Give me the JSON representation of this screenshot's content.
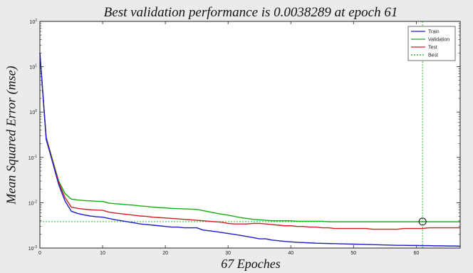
{
  "chart_data": {
    "type": "line",
    "title": "Best validation performance is 0.0038289 at epoch 61",
    "xlabel": "67 Epoches",
    "ylabel": "Mean Squared Error (mse)",
    "yscale": "log",
    "xlim": [
      0,
      67
    ],
    "ylim": [
      0.001,
      100
    ],
    "x_ticks": [
      0,
      10,
      20,
      30,
      40,
      50,
      60
    ],
    "y_ticks": [
      {
        "value": 0.001,
        "base": "10",
        "exp": "-3"
      },
      {
        "value": 0.01,
        "base": "10",
        "exp": "-2"
      },
      {
        "value": 0.1,
        "base": "10",
        "exp": "-1"
      },
      {
        "value": 1,
        "base": "10",
        "exp": "0"
      },
      {
        "value": 10,
        "base": "10",
        "exp": "1"
      },
      {
        "value": 100,
        "base": "10",
        "exp": "2"
      }
    ],
    "grid": false,
    "legend_position": "top-right",
    "series": [
      {
        "name": "Train",
        "color": "#1c1cc8",
        "style": "solid",
        "x": [
          0,
          1,
          2,
          3,
          4,
          5,
          6,
          7,
          8,
          9,
          10,
          11,
          12,
          13,
          14,
          15,
          16,
          17,
          18,
          19,
          20,
          21,
          22,
          23,
          24,
          25,
          26,
          27,
          28,
          29,
          30,
          31,
          32,
          33,
          34,
          35,
          36,
          37,
          38,
          39,
          40,
          41,
          42,
          43,
          44,
          45,
          46,
          47,
          48,
          49,
          50,
          51,
          52,
          53,
          54,
          55,
          56,
          57,
          58,
          59,
          60,
          61,
          62,
          63,
          64,
          65,
          66,
          67
        ],
        "y": [
          20,
          0.25,
          0.08,
          0.025,
          0.011,
          0.0065,
          0.0058,
          0.0054,
          0.0051,
          0.0049,
          0.0048,
          0.0045,
          0.0042,
          0.004,
          0.0038,
          0.0036,
          0.0034,
          0.0033,
          0.0032,
          0.0031,
          0.003,
          0.0029,
          0.0029,
          0.0028,
          0.0028,
          0.0028,
          0.0025,
          0.0024,
          0.0023,
          0.0022,
          0.0021,
          0.002,
          0.0019,
          0.0018,
          0.0017,
          0.0016,
          0.0016,
          0.0015,
          0.00145,
          0.0014,
          0.00137,
          0.00134,
          0.00132,
          0.0013,
          0.00128,
          0.00127,
          0.00126,
          0.00125,
          0.00124,
          0.00123,
          0.00122,
          0.00121,
          0.0012,
          0.00119,
          0.00118,
          0.00117,
          0.00116,
          0.00115,
          0.00115,
          0.00114,
          0.00114,
          0.00113,
          0.00113,
          0.00112,
          0.00112,
          0.00111,
          0.00111,
          0.0011
        ]
      },
      {
        "name": "Validation",
        "color": "#12b012",
        "style": "solid",
        "x": [
          0,
          1,
          2,
          3,
          4,
          5,
          6,
          7,
          8,
          9,
          10,
          11,
          12,
          13,
          14,
          15,
          16,
          17,
          18,
          19,
          20,
          21,
          22,
          23,
          24,
          25,
          26,
          27,
          28,
          29,
          30,
          31,
          32,
          33,
          34,
          35,
          36,
          37,
          38,
          39,
          40,
          41,
          42,
          43,
          44,
          45,
          46,
          47,
          48,
          49,
          50,
          51,
          52,
          53,
          54,
          55,
          56,
          57,
          58,
          59,
          60,
          61,
          62,
          63,
          64,
          65,
          66,
          67
        ],
        "y": [
          20,
          0.28,
          0.09,
          0.03,
          0.016,
          0.012,
          0.0115,
          0.0112,
          0.011,
          0.0108,
          0.0107,
          0.0098,
          0.0095,
          0.0093,
          0.009,
          0.0088,
          0.0085,
          0.0083,
          0.008,
          0.0078,
          0.0077,
          0.0075,
          0.0074,
          0.0073,
          0.0072,
          0.0071,
          0.0067,
          0.0063,
          0.0059,
          0.0056,
          0.0053,
          0.005,
          0.0047,
          0.0045,
          0.0043,
          0.0042,
          0.0041,
          0.004,
          0.004,
          0.004,
          0.004,
          0.0039,
          0.0039,
          0.0039,
          0.0039,
          0.0039,
          0.0038,
          0.0038,
          0.0038,
          0.0038,
          0.0038,
          0.0038,
          0.0038,
          0.0038,
          0.0038,
          0.0038,
          0.0038,
          0.0038,
          0.0038,
          0.0038,
          0.0038,
          0.0038289,
          0.0038,
          0.0038,
          0.0038,
          0.0038,
          0.0038,
          0.0038
        ]
      },
      {
        "name": "Test",
        "color": "#d21e1e",
        "style": "solid",
        "x": [
          0,
          1,
          2,
          3,
          4,
          5,
          6,
          7,
          8,
          9,
          10,
          11,
          12,
          13,
          14,
          15,
          16,
          17,
          18,
          19,
          20,
          21,
          22,
          23,
          24,
          25,
          26,
          27,
          28,
          29,
          30,
          31,
          32,
          33,
          34,
          35,
          36,
          37,
          38,
          39,
          40,
          41,
          42,
          43,
          44,
          45,
          46,
          47,
          48,
          49,
          50,
          51,
          52,
          53,
          54,
          55,
          56,
          57,
          58,
          59,
          60,
          61,
          62,
          63,
          64,
          65,
          66,
          67
        ],
        "y": [
          20,
          0.27,
          0.085,
          0.028,
          0.013,
          0.008,
          0.0075,
          0.0072,
          0.007,
          0.0069,
          0.0068,
          0.0062,
          0.0059,
          0.0057,
          0.0055,
          0.0053,
          0.0051,
          0.005,
          0.0048,
          0.0047,
          0.0046,
          0.0045,
          0.0044,
          0.0043,
          0.0042,
          0.0041,
          0.004,
          0.0039,
          0.0038,
          0.0037,
          0.0035,
          0.0034,
          0.0034,
          0.0034,
          0.0035,
          0.0035,
          0.0034,
          0.0033,
          0.0032,
          0.0031,
          0.0031,
          0.003,
          0.003,
          0.0029,
          0.0029,
          0.0028,
          0.0028,
          0.0027,
          0.0027,
          0.0027,
          0.0027,
          0.0027,
          0.0027,
          0.0026,
          0.0026,
          0.0026,
          0.0026,
          0.0026,
          0.0027,
          0.0027,
          0.0027,
          0.0027,
          0.0028,
          0.0028,
          0.0028,
          0.0028,
          0.0028,
          0.0028
        ]
      }
    ],
    "best": {
      "name": "Best",
      "epoch": 61,
      "value": 0.0038289,
      "color": "#12b012",
      "style": "dotted"
    }
  }
}
